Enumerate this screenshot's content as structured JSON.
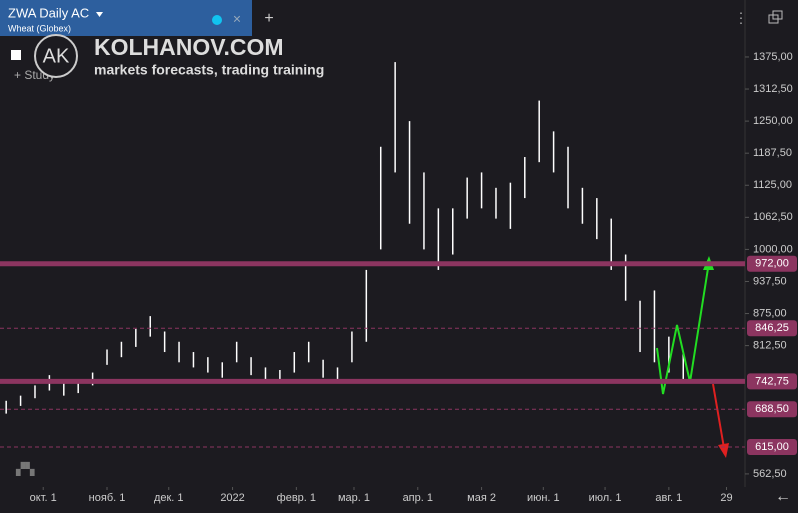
{
  "header": {
    "symbol": "ZWA Daily AC",
    "exchange": "Wheat (Globex)",
    "study": "+ Study",
    "logo": "AK",
    "brand": "KOLHANOV.COM",
    "tagline": "markets forecasts, trading training"
  },
  "chart_data": {
    "type": "ohlc",
    "x": [
      -18,
      -11,
      -4,
      3,
      10,
      17,
      24,
      31,
      38,
      45,
      52,
      59,
      66,
      73,
      80,
      87,
      94,
      101,
      108,
      115,
      122,
      129,
      136,
      143,
      150,
      157,
      164,
      171,
      178,
      185,
      192,
      199,
      206,
      213,
      220,
      227,
      234,
      241,
      248,
      255,
      262,
      269,
      276,
      283,
      290,
      297,
      304,
      311
    ],
    "high": [
      705,
      715,
      735,
      755,
      740,
      745,
      760,
      805,
      820,
      845,
      870,
      840,
      820,
      800,
      790,
      780,
      820,
      790,
      770,
      765,
      800,
      820,
      785,
      770,
      840,
      960,
      1200,
      1365,
      1250,
      1150,
      1080,
      1080,
      1140,
      1150,
      1120,
      1130,
      1180,
      1290,
      1230,
      1200,
      1120,
      1100,
      1060,
      990,
      900,
      920,
      830,
      800
    ],
    "low": [
      680,
      695,
      710,
      725,
      715,
      720,
      735,
      775,
      790,
      810,
      830,
      800,
      780,
      770,
      760,
      750,
      780,
      755,
      745,
      740,
      760,
      780,
      750,
      745,
      780,
      820,
      1000,
      1150,
      1050,
      1000,
      960,
      990,
      1060,
      1080,
      1060,
      1040,
      1100,
      1170,
      1150,
      1080,
      1050,
      1020,
      960,
      900,
      800,
      780,
      760,
      740
    ],
    "xlim": [
      -21,
      341
    ],
    "ylim": [
      537,
      1486
    ],
    "xticks": [
      {
        "value": 0,
        "label": "окт. 1"
      },
      {
        "value": 31,
        "label": "нояб. 1"
      },
      {
        "value": 61,
        "label": "дек. 1"
      },
      {
        "value": 92,
        "label": "2022"
      },
      {
        "value": 123,
        "label": "февр. 1"
      },
      {
        "value": 151,
        "label": "мар. 1"
      },
      {
        "value": 182,
        "label": "апр. 1"
      },
      {
        "value": 213,
        "label": "мая 2"
      },
      {
        "value": 243,
        "label": "июн. 1"
      },
      {
        "value": 273,
        "label": "июл. 1"
      },
      {
        "value": 304,
        "label": "авг. 1"
      },
      {
        "value": 332,
        "label": "29"
      }
    ],
    "yticks": [
      {
        "value": 562.5,
        "label": "562,50"
      },
      {
        "value": 812.5,
        "label": "812,50"
      },
      {
        "value": 875,
        "label": "875,00"
      },
      {
        "value": 937.5,
        "label": "937,50"
      },
      {
        "value": 1000,
        "label": "1000,00"
      },
      {
        "value": 1062.5,
        "label": "1062,50"
      },
      {
        "value": 1125,
        "label": "1125,00"
      },
      {
        "value": 1187.5,
        "label": "1187,50"
      },
      {
        "value": 1250,
        "label": "1250,00"
      },
      {
        "value": 1312.5,
        "label": "1312,50"
      },
      {
        "value": 1375,
        "label": "1375,00"
      }
    ],
    "levels": [
      {
        "value": 972,
        "label": "972,00",
        "style": "solid"
      },
      {
        "value": 846.25,
        "label": "846,25",
        "style": "dashed"
      },
      {
        "value": 742.75,
        "label": "742,75",
        "style": "solid"
      },
      {
        "value": 688.5,
        "label": "688,50",
        "style": "dashed"
      },
      {
        "value": 615,
        "label": "615,00",
        "style": "dashed"
      }
    ],
    "bar_color": "#ffffff",
    "level_color": "#8c3560"
  }
}
